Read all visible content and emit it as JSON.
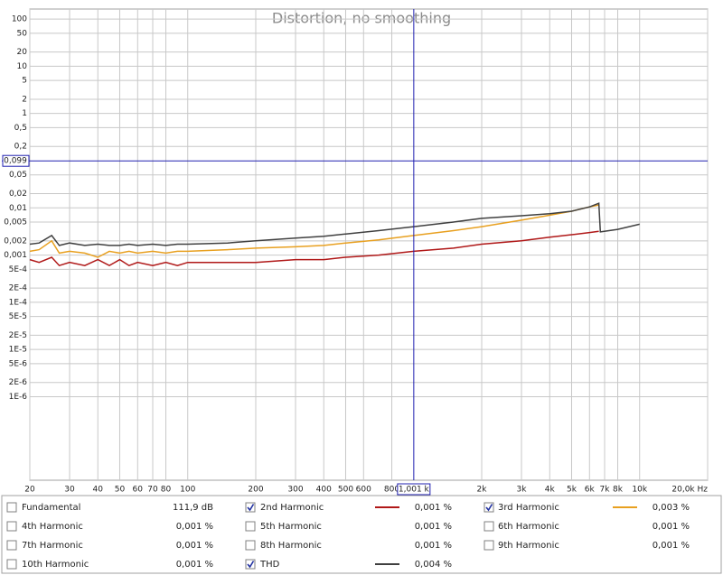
{
  "chart_data": {
    "type": "line",
    "title": "Distortion, no smoothing",
    "log_x": true,
    "log_y": true,
    "grid": true,
    "xlim": [
      20,
      20000
    ],
    "ylim": [
      1.7e-08,
      163
    ],
    "xticks": [
      20,
      30,
      40,
      50,
      60,
      70,
      80,
      100,
      200,
      300,
      400,
      500,
      600,
      800,
      {
        "value": 2000,
        "label": "2k"
      },
      {
        "value": 3000,
        "label": "3k"
      },
      {
        "value": 4000,
        "label": "4k"
      },
      {
        "value": 5000,
        "label": "5k"
      },
      {
        "value": 6000,
        "label": "6k"
      },
      {
        "value": 7000,
        "label": "7k"
      },
      {
        "value": 8000,
        "label": "8k"
      },
      {
        "value": 10000,
        "label": "10k"
      },
      {
        "value": 20000,
        "label": "20,0k Hz"
      }
    ],
    "yticks": [
      100,
      50,
      20,
      10,
      5,
      2,
      1,
      {
        "value": 0.5,
        "label": "0,5"
      },
      {
        "value": 0.2,
        "label": "0,2"
      },
      {
        "value": 0.05,
        "label": "0,05"
      },
      {
        "value": 0.02,
        "label": "0,02"
      },
      {
        "value": 0.01,
        "label": "0,01"
      },
      {
        "value": 0.005,
        "label": "0,005"
      },
      {
        "value": 0.002,
        "label": "0,002"
      },
      {
        "value": 0.001,
        "label": "0,001"
      },
      {
        "value": 0.0005,
        "label": "5E-4"
      },
      {
        "value": 0.0002,
        "label": "2E-4"
      },
      {
        "value": 0.0001,
        "label": "1E-4"
      },
      {
        "value": 5e-05,
        "label": "5E-5"
      },
      {
        "value": 2e-05,
        "label": "2E-5"
      },
      {
        "value": 1e-05,
        "label": "1E-5"
      },
      {
        "value": 5e-06,
        "label": "5E-6"
      },
      {
        "value": 2e-06,
        "label": "2E-6"
      },
      {
        "value": 1e-06,
        "label": "1E-6"
      }
    ],
    "cursor": {
      "x": 1001,
      "x_label": "1,001 k",
      "y": 0.099,
      "y_label": "0,099"
    },
    "x": [
      20,
      22,
      25,
      27,
      30,
      35,
      40,
      45,
      50,
      55,
      60,
      70,
      80,
      90,
      100,
      150,
      200,
      300,
      400,
      500,
      700,
      1000,
      1500,
      2000,
      3000,
      4000,
      5000,
      6000,
      6600,
      6700,
      8000,
      10000
    ],
    "series": [
      {
        "name": "Fundamental",
        "color": "#c0502a",
        "checked": false,
        "readout": "111,9 dB"
      },
      {
        "name": "2nd Harmonic",
        "color": "#b01818",
        "checked": true,
        "readout": "0,001 %",
        "values": [
          0.0008,
          0.0007,
          0.0009,
          0.0006,
          0.0007,
          0.0006,
          0.0008,
          0.0006,
          0.0008,
          0.0006,
          0.0007,
          0.0006,
          0.0007,
          0.0006,
          0.0007,
          0.0007,
          0.0007,
          0.0008,
          0.0008,
          0.0009,
          0.001,
          0.0012,
          0.0014,
          0.0017,
          0.002,
          0.0024,
          0.0027,
          0.003,
          0.0032,
          null,
          null,
          null
        ]
      },
      {
        "name": "3rd Harmonic",
        "color": "#e8a020",
        "checked": true,
        "readout": "0,003 %",
        "values": [
          0.0012,
          0.0013,
          0.002,
          0.0011,
          0.0012,
          0.0011,
          0.0009,
          0.0012,
          0.0011,
          0.0012,
          0.0011,
          0.0012,
          0.0011,
          0.0012,
          0.0012,
          0.0013,
          0.0014,
          0.0015,
          0.0016,
          0.0018,
          0.0021,
          0.0026,
          0.0033,
          0.004,
          0.0055,
          0.007,
          0.0085,
          0.0105,
          0.0115,
          null,
          null,
          null
        ]
      },
      {
        "name": "4th Harmonic",
        "color": "#c8c020",
        "checked": false,
        "readout": "0,001 %"
      },
      {
        "name": "5th Harmonic",
        "color": "#98c040",
        "checked": false,
        "readout": "0,001 %"
      },
      {
        "name": "6th Harmonic",
        "color": "#6090d8",
        "checked": false,
        "readout": "0,001 %"
      },
      {
        "name": "7th Harmonic",
        "color": "#e070e0",
        "checked": false,
        "readout": "0,001 %"
      },
      {
        "name": "8th Harmonic",
        "color": "#909090",
        "checked": false,
        "readout": "0,001 %"
      },
      {
        "name": "9th Harmonic",
        "color": "#20b0c0",
        "checked": false,
        "readout": "0,001 %"
      },
      {
        "name": "10th Harmonic",
        "color": "#909020",
        "checked": false,
        "readout": "0,001 %"
      },
      {
        "name": "THD",
        "color": "#404040",
        "checked": true,
        "readout": "0,004 %",
        "values": [
          0.0017,
          0.0018,
          0.0026,
          0.0016,
          0.0018,
          0.0016,
          0.0017,
          0.0016,
          0.0016,
          0.0017,
          0.0016,
          0.0017,
          0.0016,
          0.0017,
          0.0017,
          0.0018,
          0.002,
          0.0023,
          0.0025,
          0.0028,
          0.0033,
          0.004,
          0.005,
          0.006,
          0.0068,
          0.0075,
          0.0085,
          0.0105,
          0.0125,
          0.0031,
          0.0035,
          0.0045
        ]
      }
    ]
  }
}
